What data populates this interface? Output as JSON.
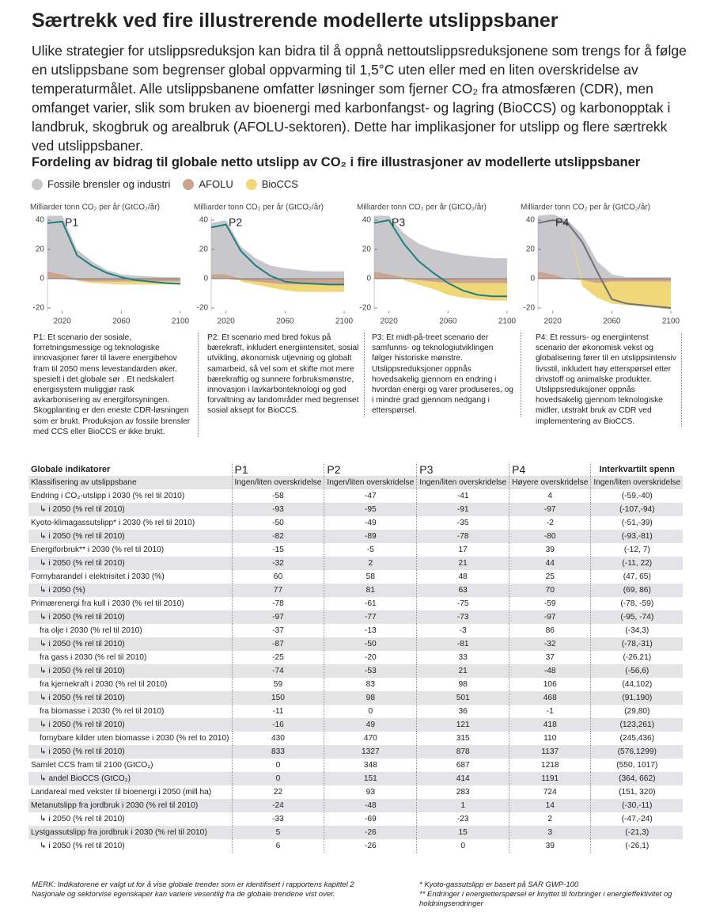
{
  "title": "Særtrekk ved fire illustrerende modellerte utslippsbaner",
  "intro": "Ulike strategier for utslippsreduksjon kan bidra til å oppnå nettoutslippsreduksjonene som trengs for å følge en utslippsbane som begrenser global oppvarming til 1,5°C uten eller med en liten overskridelse av temperaturmålet. Alle utslippsbanene omfatter løsninger som fjerner CO₂ fra atmosfæren (CDR), men omfanget varier, slik som bruken av bioenergi med karbonfangst- og lagring (BioCCS) og karbonopptak i landbruk, skogbruk og arealbruk (AFOLU-sektoren). Dette har implikasjoner for utslipp og flere særtrekk ved utslippsbaner.",
  "figure_title": "Fordeling av bidrag til globale netto utslipp av CO₂ i fire illustrasjoner av modellerte utslippsbaner",
  "legend": [
    {
      "name": "Fossile brensler og industri",
      "color": "#c8c8cc"
    },
    {
      "name": "AFOLU",
      "color": "#c9a58f"
    },
    {
      "name": "BioCCS",
      "color": "#f0d878"
    }
  ],
  "chart_data": [
    {
      "type": "area",
      "label": "P1",
      "ylabel": "Milliarder tonn CO₂ per år (GtCO₂/år)",
      "x": [
        2010,
        2020,
        2030,
        2040,
        2050,
        2060,
        2070,
        2080,
        2090,
        2100
      ],
      "xlim": [
        2010,
        2100
      ],
      "ylim": [
        -22,
        42
      ],
      "xticks": [
        2020,
        2060,
        2100
      ],
      "yticks": [
        -20,
        0,
        20,
        40
      ],
      "series": [
        {
          "color": "#c9a58f",
          "values": [
            5,
            3,
            -1,
            -2,
            -2,
            -2,
            -2,
            -2,
            -2,
            -2
          ]
        },
        {
          "color": "#c8c8cc",
          "values": [
            38,
            40,
            20,
            12,
            6,
            3,
            2,
            1.5,
            1,
            1
          ]
        },
        {
          "color": "#f0d878",
          "values": [
            0,
            0,
            -0.5,
            -1,
            -1.5,
            -2,
            -2,
            -2,
            -2,
            -2
          ]
        },
        {
          "type": "line",
          "color": "#1f7f80",
          "values": [
            38,
            39,
            16,
            9,
            4,
            1,
            -1,
            -2,
            -3,
            -3.5
          ]
        }
      ]
    },
    {
      "type": "area",
      "label": "P2",
      "ylabel": "Milliarder tonn CO₂ per år (GtCO₂/år)",
      "x": [
        2010,
        2020,
        2030,
        2040,
        2050,
        2060,
        2070,
        2080,
        2090,
        2100
      ],
      "xlim": [
        2010,
        2100
      ],
      "ylim": [
        -22,
        42
      ],
      "xticks": [
        2020,
        2060,
        2100
      ],
      "yticks": [
        -20,
        0,
        20,
        40
      ],
      "series": [
        {
          "color": "#c9a58f",
          "values": [
            3,
            3,
            -1,
            -2,
            -3,
            -4,
            -4,
            -4,
            -4,
            -4
          ]
        },
        {
          "color": "#c8c8cc",
          "values": [
            35,
            37,
            22,
            14,
            9,
            7,
            6,
            5,
            5,
            5
          ]
        },
        {
          "color": "#f0d878",
          "values": [
            0,
            0,
            -1,
            -2,
            -3,
            -4,
            -5,
            -5,
            -5,
            -5
          ]
        },
        {
          "type": "line",
          "color": "#1f7f80",
          "values": [
            35,
            37,
            19,
            9,
            2,
            -2,
            -3,
            -3.5,
            -4,
            -4
          ]
        }
      ]
    },
    {
      "type": "area",
      "label": "P3",
      "ylabel": "Milliarder tonn CO₂ per år (GtCO₂/år)",
      "x": [
        2010,
        2020,
        2030,
        2040,
        2050,
        2060,
        2070,
        2080,
        2090,
        2100
      ],
      "xlim": [
        2010,
        2100
      ],
      "ylim": [
        -22,
        42
      ],
      "xticks": [
        2020,
        2060,
        2100
      ],
      "yticks": [
        -20,
        0,
        20,
        40
      ],
      "series": [
        {
          "color": "#c9a58f",
          "values": [
            5,
            3,
            1,
            -1,
            -2,
            -3,
            -3,
            -3,
            -3,
            -3
          ]
        },
        {
          "color": "#c8c8cc",
          "values": [
            38,
            40,
            30,
            24,
            20,
            18,
            16,
            15,
            14,
            14
          ]
        },
        {
          "color": "#f0d878",
          "values": [
            0,
            0,
            -1,
            -3,
            -5,
            -8,
            -10,
            -11,
            -12,
            -12
          ]
        },
        {
          "type": "line",
          "color": "#1f7f80",
          "values": [
            38,
            40,
            24,
            12,
            4,
            -3,
            -8,
            -11,
            -12,
            -12
          ]
        }
      ]
    },
    {
      "type": "area",
      "label": "P4",
      "ylabel": "Milliarder tonn CO₂ per år (GtCO₂/år)",
      "x": [
        2010,
        2020,
        2030,
        2040,
        2050,
        2060,
        2070,
        2080,
        2090,
        2100
      ],
      "xlim": [
        2010,
        2100
      ],
      "ylim": [
        -22,
        42
      ],
      "xticks": [
        2020,
        2060,
        2100
      ],
      "yticks": [
        -20,
        0,
        20,
        40
      ],
      "series": [
        {
          "color": "#c9a58f",
          "values": [
            5,
            3,
            0,
            -1,
            -3,
            -2,
            -2,
            -2,
            -2,
            -2
          ]
        },
        {
          "color": "#c8c8cc",
          "values": [
            38,
            41,
            40,
            30,
            12,
            3,
            1,
            1,
            1,
            1
          ]
        },
        {
          "color": "#f0d878",
          "values": [
            0,
            0,
            0,
            -4,
            -10,
            -15,
            -16,
            -17,
            -18,
            -19
          ]
        },
        {
          "type": "line",
          "color": "#6f7378",
          "values": [
            38,
            40,
            38,
            25,
            5,
            -14,
            -17,
            -18,
            -19,
            -20
          ]
        }
      ]
    }
  ],
  "descriptions": [
    "P1: Et scenario der sosiale, forretningsmessige og teknologiske innovasjoner fører til lavere energibehov fram til 2050 mens levestandarden øker, spesielt i det globale sør . Et nedskalert energisystem  muliggjør rask avkarbonisering av energiforsyningen. Skogplanting er den eneste CDR-løsningen som er brukt. Produksjon av fossile brensler med CCS eller BioCCS er ikke brukt.",
    "P2:  Et scenario med bred fokus på bærekraft, inkludert energiintensitet, sosial utvikling, økonomisk utjevning og globalt samarbeid, så vel som et skifte mot mere bærekraftig og sunnere forbruksmønstre, innovasjon i lavkarbonteknologi og god forvaltning av landområder med begrenset sosial aksept for BioCCS.",
    "P3: Et midt-på-treet scenario der samfunns- og teknologiutviklingen følger historiske mønstre. Utslippsreduksjoner oppnås hovedsakelig gjennom en endring i hvordan energi og varer produseres, og i mindre grad gjennom nedgang i etterspørsel.",
    "P4:  Et ressurs- og energiintenst scenario der økonomisk vekst og globalisering fører til en utslippsintensiv livsstil, inkludert høy etterspørsel etter drivstoff og animalske produkter. Utslippsreduksjoner oppnås hovedsakelig gjennom teknologiske midler, utstrakt bruk av CDR ved implementering av BioCCS."
  ],
  "table": {
    "header": [
      "Globale indikatorer",
      "P1",
      "P2",
      "P3",
      "P4",
      "Interkvartilt spenn"
    ],
    "classification": [
      "Klassifisering av utslippsbane",
      "Ingen/liten overskridelse",
      "Ingen/liten overskridelse",
      "Ingen/liten overskridelse",
      "Høyere overskridelse",
      "Ingen/liten overskridelse"
    ],
    "rows": [
      [
        "Endring i CO₂-utslipp i 2030 (% rel til 2010)",
        -58,
        -47,
        -41,
        4,
        "(-59,-40)"
      ],
      [
        "↳ i 2050 (% rel til 2010)",
        -93,
        -95,
        -91,
        -97,
        "(-107,-94)"
      ],
      [
        "Kyoto-klimagassutslipp* i 2030 (% rel til 2010)",
        -50,
        -49,
        -35,
        -2,
        "(-51,-39)"
      ],
      [
        "↳ i 2050 (% rel til 2010)",
        -82,
        -89,
        -78,
        -80,
        "(-93,-81)"
      ],
      [
        "Energiforbruk** i 2030 (% rel til 2010)",
        -15,
        -5,
        17,
        39,
        "(-12, 7)"
      ],
      [
        "↳ i 2050 (% rel til 2010)",
        -32,
        2,
        21,
        44,
        "(-11, 22)"
      ],
      [
        "Fornybarandel i elektrisitet i 2030 (%)",
        60,
        58,
        48,
        25,
        "(47, 65)"
      ],
      [
        "↳ i 2050 (%)",
        77,
        81,
        63,
        70,
        "(69, 86)"
      ],
      [
        "Primærenergi fra kull i 2030 (% rel til 2010)",
        -78,
        -61,
        -75,
        -59,
        "(-78, -59)"
      ],
      [
        "↳ i 2050 (% rel til 2010)",
        -97,
        -77,
        -73,
        -97,
        "(-95, -74)"
      ],
      [
        "fra olje i 2030  (% rel til 2010)",
        -37,
        -13,
        -3,
        86,
        "(-34,3)"
      ],
      [
        "↳ i 2050  (% rel til 2010)",
        -87,
        -50,
        -81,
        -32,
        "(-78,-31)"
      ],
      [
        "fra gass i 2030 (% rel til 2010)",
        -25,
        -20,
        33,
        37,
        "(-26,21)"
      ],
      [
        "↳ i 2050 (% rel til 2010)",
        -74,
        -53,
        21,
        -48,
        "(-56,6)"
      ],
      [
        "fra kjernekraft i 2030  (% rel til 2010)",
        59,
        83,
        98,
        106,
        "(44,102)"
      ],
      [
        "↳ i 2050  (% rel til 2010)",
        150,
        98,
        501,
        468,
        "(91,190)"
      ],
      [
        "fra biomasse i 2030  (% rel til 2010)",
        -11,
        0,
        36,
        -1,
        "(29,80)"
      ],
      [
        "↳ i 2050  (% rel til 2010)",
        -16,
        49,
        121,
        418,
        "(123,261)"
      ],
      [
        "fornybare kilder uten biomasse i 2030 (% rel to 2010)",
        430,
        470,
        315,
        110,
        "(245,436)"
      ],
      [
        "↳ i 2050  (% rel til 2010)",
        833,
        1327,
        878,
        1137,
        "(576,1299)"
      ],
      [
        "Samlet CCS fram til 2100 (GtCO₂)",
        0,
        348,
        687,
        1218,
        "(550, 1017)"
      ],
      [
        "↳ andel BioCCS (GtCO₂)",
        0,
        151,
        414,
        1191,
        "(364, 662)"
      ],
      [
        "Landareal med vekster til bioenergi i 2050 (mill ha)",
        22,
        93,
        283,
        724,
        "(151, 320)"
      ],
      [
        "Metanutslipp fra jordbruk i 2030 (% rel til 2010)",
        -24,
        -48,
        1,
        14,
        "(-30,-11)"
      ],
      [
        "↳ i 2050  (% rel til 2010)",
        -33,
        -69,
        -23,
        2,
        "(-47,-24)"
      ],
      [
        "Lystgassutslipp fra jordbruk i 2030 (% rel til 2010)",
        5,
        -26,
        15,
        3,
        "(-21,3)"
      ],
      [
        "↳ i 2050  (% rel til 2010)",
        6,
        -26,
        0,
        39,
        "(-26,1)"
      ]
    ]
  },
  "notes": {
    "left": [
      "MERK: Indikatorene er valgt ut for å vise globale trender som er identifisert i rapportens kapittel 2",
      "Nasjonale og sektorvise egenskaper kan variere vesentlig fra de globale trendene vist over."
    ],
    "right": [
      "* Kyoto-gassutslipp er basert på SAR GWP-100",
      "** Endringer i energietterspørsel er knyttet til forbringer i energieffektivitet og holdningsendringer"
    ]
  }
}
